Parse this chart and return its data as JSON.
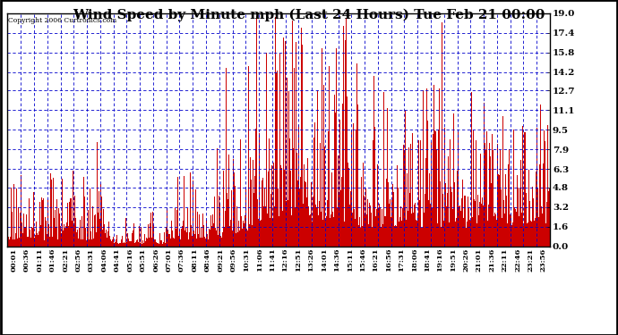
{
  "title": "Wind Speed by Minute mph (Last 24 Hours) Tue Feb 21 00:00",
  "copyright": "Copyright 2006 Curtronics.com",
  "yticks": [
    0.0,
    1.6,
    3.2,
    4.8,
    6.3,
    7.9,
    9.5,
    11.1,
    12.7,
    14.2,
    15.8,
    17.4,
    19.0
  ],
  "ymax": 19.0,
  "ymin": 0.0,
  "xtick_labels": [
    "00:01",
    "00:36",
    "01:11",
    "01:46",
    "02:21",
    "02:56",
    "03:31",
    "04:06",
    "04:41",
    "05:16",
    "05:51",
    "06:26",
    "07:01",
    "07:36",
    "08:11",
    "08:46",
    "09:21",
    "09:56",
    "10:31",
    "11:06",
    "11:41",
    "12:16",
    "12:51",
    "13:26",
    "14:01",
    "14:36",
    "15:11",
    "15:46",
    "16:21",
    "16:56",
    "17:31",
    "18:06",
    "18:41",
    "19:16",
    "19:51",
    "20:26",
    "21:01",
    "21:36",
    "22:11",
    "22:46",
    "23:21",
    "23:56"
  ],
  "bar_color": "#cc0000",
  "bg_color": "#ffffff",
  "grid_color": "#0000cc",
  "title_fontsize": 11,
  "seed": 42
}
